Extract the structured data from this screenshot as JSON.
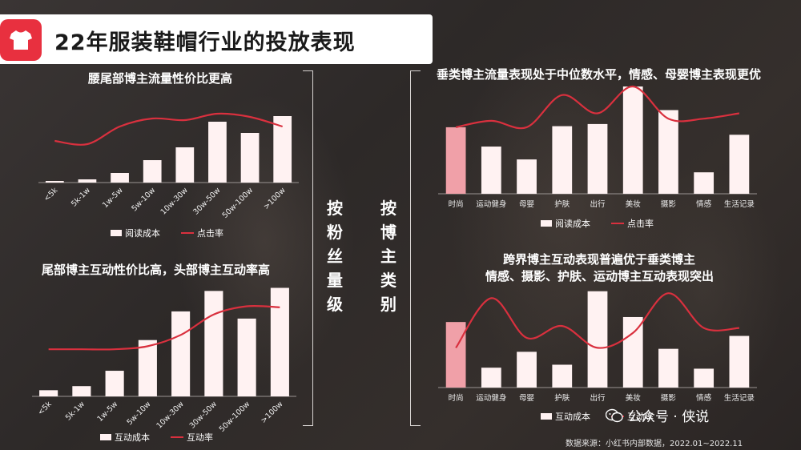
{
  "page_title": "22年服装鞋帽行业的投放表现",
  "section_labels": {
    "left": "按粉丝量级",
    "right": "按博主类别"
  },
  "footer": {
    "logo_text": "公众号 · 侠说",
    "source": "数据来源：小红书内部数据，2022.01~2022.11"
  },
  "colors": {
    "bar": "#fff2f2",
    "bar_highlight": "#f0a0a8",
    "line": "#d9303e",
    "accent": "#e8303f"
  },
  "chart_data": [
    {
      "id": "tier-read",
      "type": "bar",
      "title": "腰尾部博主流量性价比更高",
      "categories": [
        "<5k",
        "5k-1w",
        "1w-5w",
        "5w-10w",
        "10w-30w",
        "30w-50w",
        "50w-100w",
        ">100w"
      ],
      "series": [
        {
          "name": "阅读成本",
          "kind": "bar",
          "values": [
            2,
            4,
            12,
            28,
            44,
            76,
            62,
            83
          ]
        },
        {
          "name": "点击率",
          "kind": "line",
          "values": [
            52,
            48,
            70,
            80,
            78,
            86,
            82,
            70
          ]
        }
      ],
      "ylim": [
        0,
        100
      ],
      "highlight_index": null
    },
    {
      "id": "tier-interact",
      "type": "bar",
      "title": "尾部博主互动性价比高，头部博主互动率高",
      "categories": [
        "<5k",
        "5k-1w",
        "1w-5w",
        "5w-10w",
        "10w-30w",
        "30w-50w",
        "50w-100w",
        ">100w"
      ],
      "series": [
        {
          "name": "互动成本",
          "kind": "bar",
          "values": [
            6,
            10,
            25,
            55,
            83,
            103,
            76,
            106
          ]
        },
        {
          "name": "互动率",
          "kind": "line",
          "values": [
            46,
            46,
            46,
            49,
            60,
            80,
            88,
            87
          ]
        }
      ],
      "ylim": [
        0,
        115
      ],
      "highlight_index": null
    },
    {
      "id": "category-read",
      "type": "bar",
      "title": "垂类博主流量表现处于中位数水平，情感、母婴博主表现更优",
      "categories": [
        "时尚",
        "运动健身",
        "母婴",
        "护肤",
        "出行",
        "美妆",
        "摄影",
        "情感",
        "生活记录"
      ],
      "series": [
        {
          "name": "阅读成本",
          "kind": "bar",
          "values": [
            62,
            44,
            32,
            63,
            65,
            100,
            78,
            20,
            55
          ]
        },
        {
          "name": "点击率",
          "kind": "line",
          "values": [
            62,
            68,
            62,
            92,
            75,
            100,
            70,
            70,
            75
          ]
        }
      ],
      "ylim": [
        0,
        100
      ],
      "highlight_index": 0
    },
    {
      "id": "category-interact",
      "type": "bar",
      "title": "跨界博主互动表现普遍优于垂类博主",
      "subtitle": "情感、摄影、护肤、运动博主互动表现突出",
      "categories": [
        "时尚",
        "运动健身",
        "母婴",
        "护肤",
        "出行",
        "美妆",
        "摄影",
        "情感",
        "生活记录"
      ],
      "series": [
        {
          "name": "互动成本",
          "kind": "bar",
          "values": [
            66,
            20,
            36,
            23,
            97,
            71,
            39,
            19,
            52
          ]
        },
        {
          "name": "互动率",
          "kind": "line",
          "values": [
            40,
            90,
            50,
            62,
            40,
            55,
            95,
            60,
            60
          ]
        }
      ],
      "ylim": [
        0,
        100
      ],
      "highlight_index": 0
    }
  ]
}
